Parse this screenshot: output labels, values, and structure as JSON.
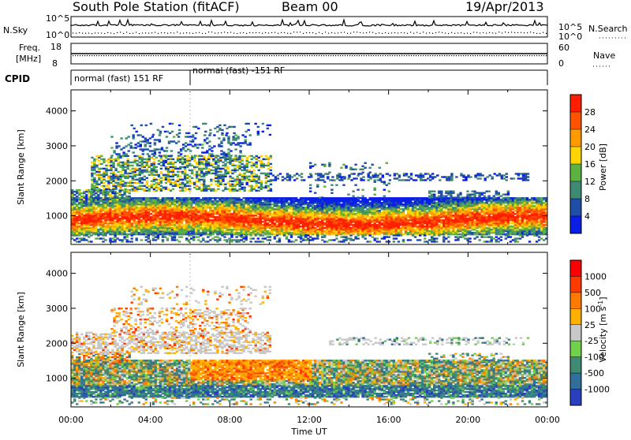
{
  "header": {
    "station": "South Pole Station (fitACF)",
    "beam": "Beam 00",
    "date": "19/Apr/2013"
  },
  "strip_panels": {
    "sky": {
      "left_label": "N.Sky",
      "right_label": "N.Search",
      "left_ticks": [
        "10^5",
        "10^0"
      ],
      "right_ticks": [
        "10^5",
        "10^0"
      ]
    },
    "freq": {
      "left_label_1": "Freq.",
      "left_label_2": "[MHz]",
      "right_label": "Nave",
      "left_ticks": [
        "18",
        "8"
      ],
      "right_ticks": [
        "60",
        "0"
      ]
    },
    "cpid": {
      "label": "CPID",
      "segments": [
        {
          "text": "normal (fast) 151 RF"
        },
        {
          "text": "normal (fast) -151 RF"
        }
      ]
    }
  },
  "chart_data": [
    {
      "type": "heatmap",
      "title": "",
      "xlabel": "",
      "ylabel": "Slant Range [km]",
      "x_range_hours": [
        0,
        24
      ],
      "ylim": [
        180,
        4600
      ],
      "y_ticks": [
        "1000",
        "2000",
        "3000",
        "4000"
      ],
      "x_ticks": [
        "00:00",
        "04:00",
        "08:00",
        "12:00",
        "16:00",
        "20:00",
        "00:00"
      ],
      "colorbar": {
        "label": "Power [dB]",
        "ticks": [
          "28",
          "24",
          "20",
          "16",
          "12",
          "8",
          "4"
        ],
        "colors": [
          "#0a1ee6",
          "#1f4ea8",
          "#3f8a72",
          "#5bb23e",
          "#ffd400",
          "#ff9a00",
          "#ff5200",
          "#ff1e00"
        ]
      },
      "features": [
        {
          "name": "main echo band",
          "range_km": [
            600,
            1400
          ],
          "hours": [
            0,
            24
          ],
          "dominant": "high power"
        },
        {
          "name": "upper scatter",
          "range_km": [
            1800,
            2700
          ],
          "hours": [
            0,
            10
          ],
          "dominant": "medium power"
        },
        {
          "name": "far scatter",
          "range_km": [
            2000,
            2200
          ],
          "hours": [
            9.5,
            22.5
          ],
          "dominant": "low power"
        }
      ]
    },
    {
      "type": "heatmap",
      "title": "",
      "xlabel": "Time UT",
      "ylabel": "Slant Range [km]",
      "x_range_hours": [
        0,
        24
      ],
      "ylim": [
        180,
        4600
      ],
      "y_ticks": [
        "1000",
        "2000",
        "3000",
        "4000"
      ],
      "x_ticks": [
        "00:00",
        "04:00",
        "08:00",
        "12:00",
        "16:00",
        "20:00",
        "00:00"
      ],
      "colorbar": {
        "label": "Velocity [m s",
        "label_sup": "-1",
        "label_end": "]",
        "ticks": [
          "1000",
          "500",
          "100",
          "25",
          "-25",
          "-100",
          "-500",
          "-1000"
        ],
        "colors": [
          "#2a3fc0",
          "#2f6f9a",
          "#3f8a72",
          "#6fd24a",
          "#c8c8c8",
          "#ffb000",
          "#ff7a00",
          "#ff3a00",
          "#ff0000"
        ]
      },
      "features": [
        {
          "name": "main echo band",
          "range_km": [
            600,
            1400
          ],
          "hours": [
            0,
            24
          ],
          "dominant": "mixed velocity"
        },
        {
          "name": "ground scatter band",
          "range_km": [
            1700,
            2300
          ],
          "hours": [
            0,
            10
          ],
          "dominant": "-25 to 25"
        },
        {
          "name": "far scatter",
          "range_km": [
            1950,
            2150
          ],
          "hours": [
            13,
            22.5
          ],
          "dominant": "low velocity"
        }
      ]
    }
  ]
}
